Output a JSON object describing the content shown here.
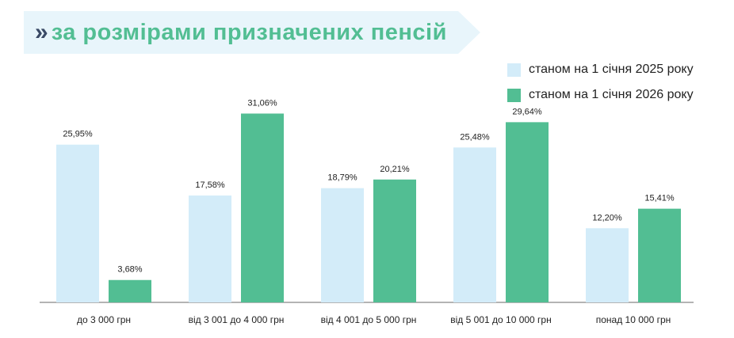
{
  "header": {
    "chevron": "»",
    "title": "за розмірами призначених пенсій"
  },
  "colors": {
    "banner_bg": "#e8f5fb",
    "series_2025": "#d3ecf9",
    "series_2026": "#52be93",
    "chevron": "#3a4a66"
  },
  "chart_data": {
    "type": "bar",
    "categories": [
      "до 3 000 грн",
      "від 3 001 до 4 000 грн",
      "від 4 001 до 5 000 грн",
      "від 5 001 до 10 000 грн",
      "понад 10 000 грн"
    ],
    "series": [
      {
        "name": "станом на 1 січня 2025 року",
        "values": [
          25.95,
          17.58,
          18.79,
          25.48,
          12.2
        ],
        "labels": [
          "25,95%",
          "17,58%",
          "18,79%",
          "25,48%",
          "12,20%"
        ],
        "color": "#d3ecf9"
      },
      {
        "name": "станом на 1 січня 2026 року",
        "values": [
          3.68,
          31.06,
          20.21,
          29.64,
          15.41
        ],
        "labels": [
          "3,68%",
          "31,06%",
          "20,21%",
          "29,64%",
          "15,41%"
        ],
        "color": "#52be93"
      }
    ],
    "legend": "top-right",
    "grid": false
  }
}
